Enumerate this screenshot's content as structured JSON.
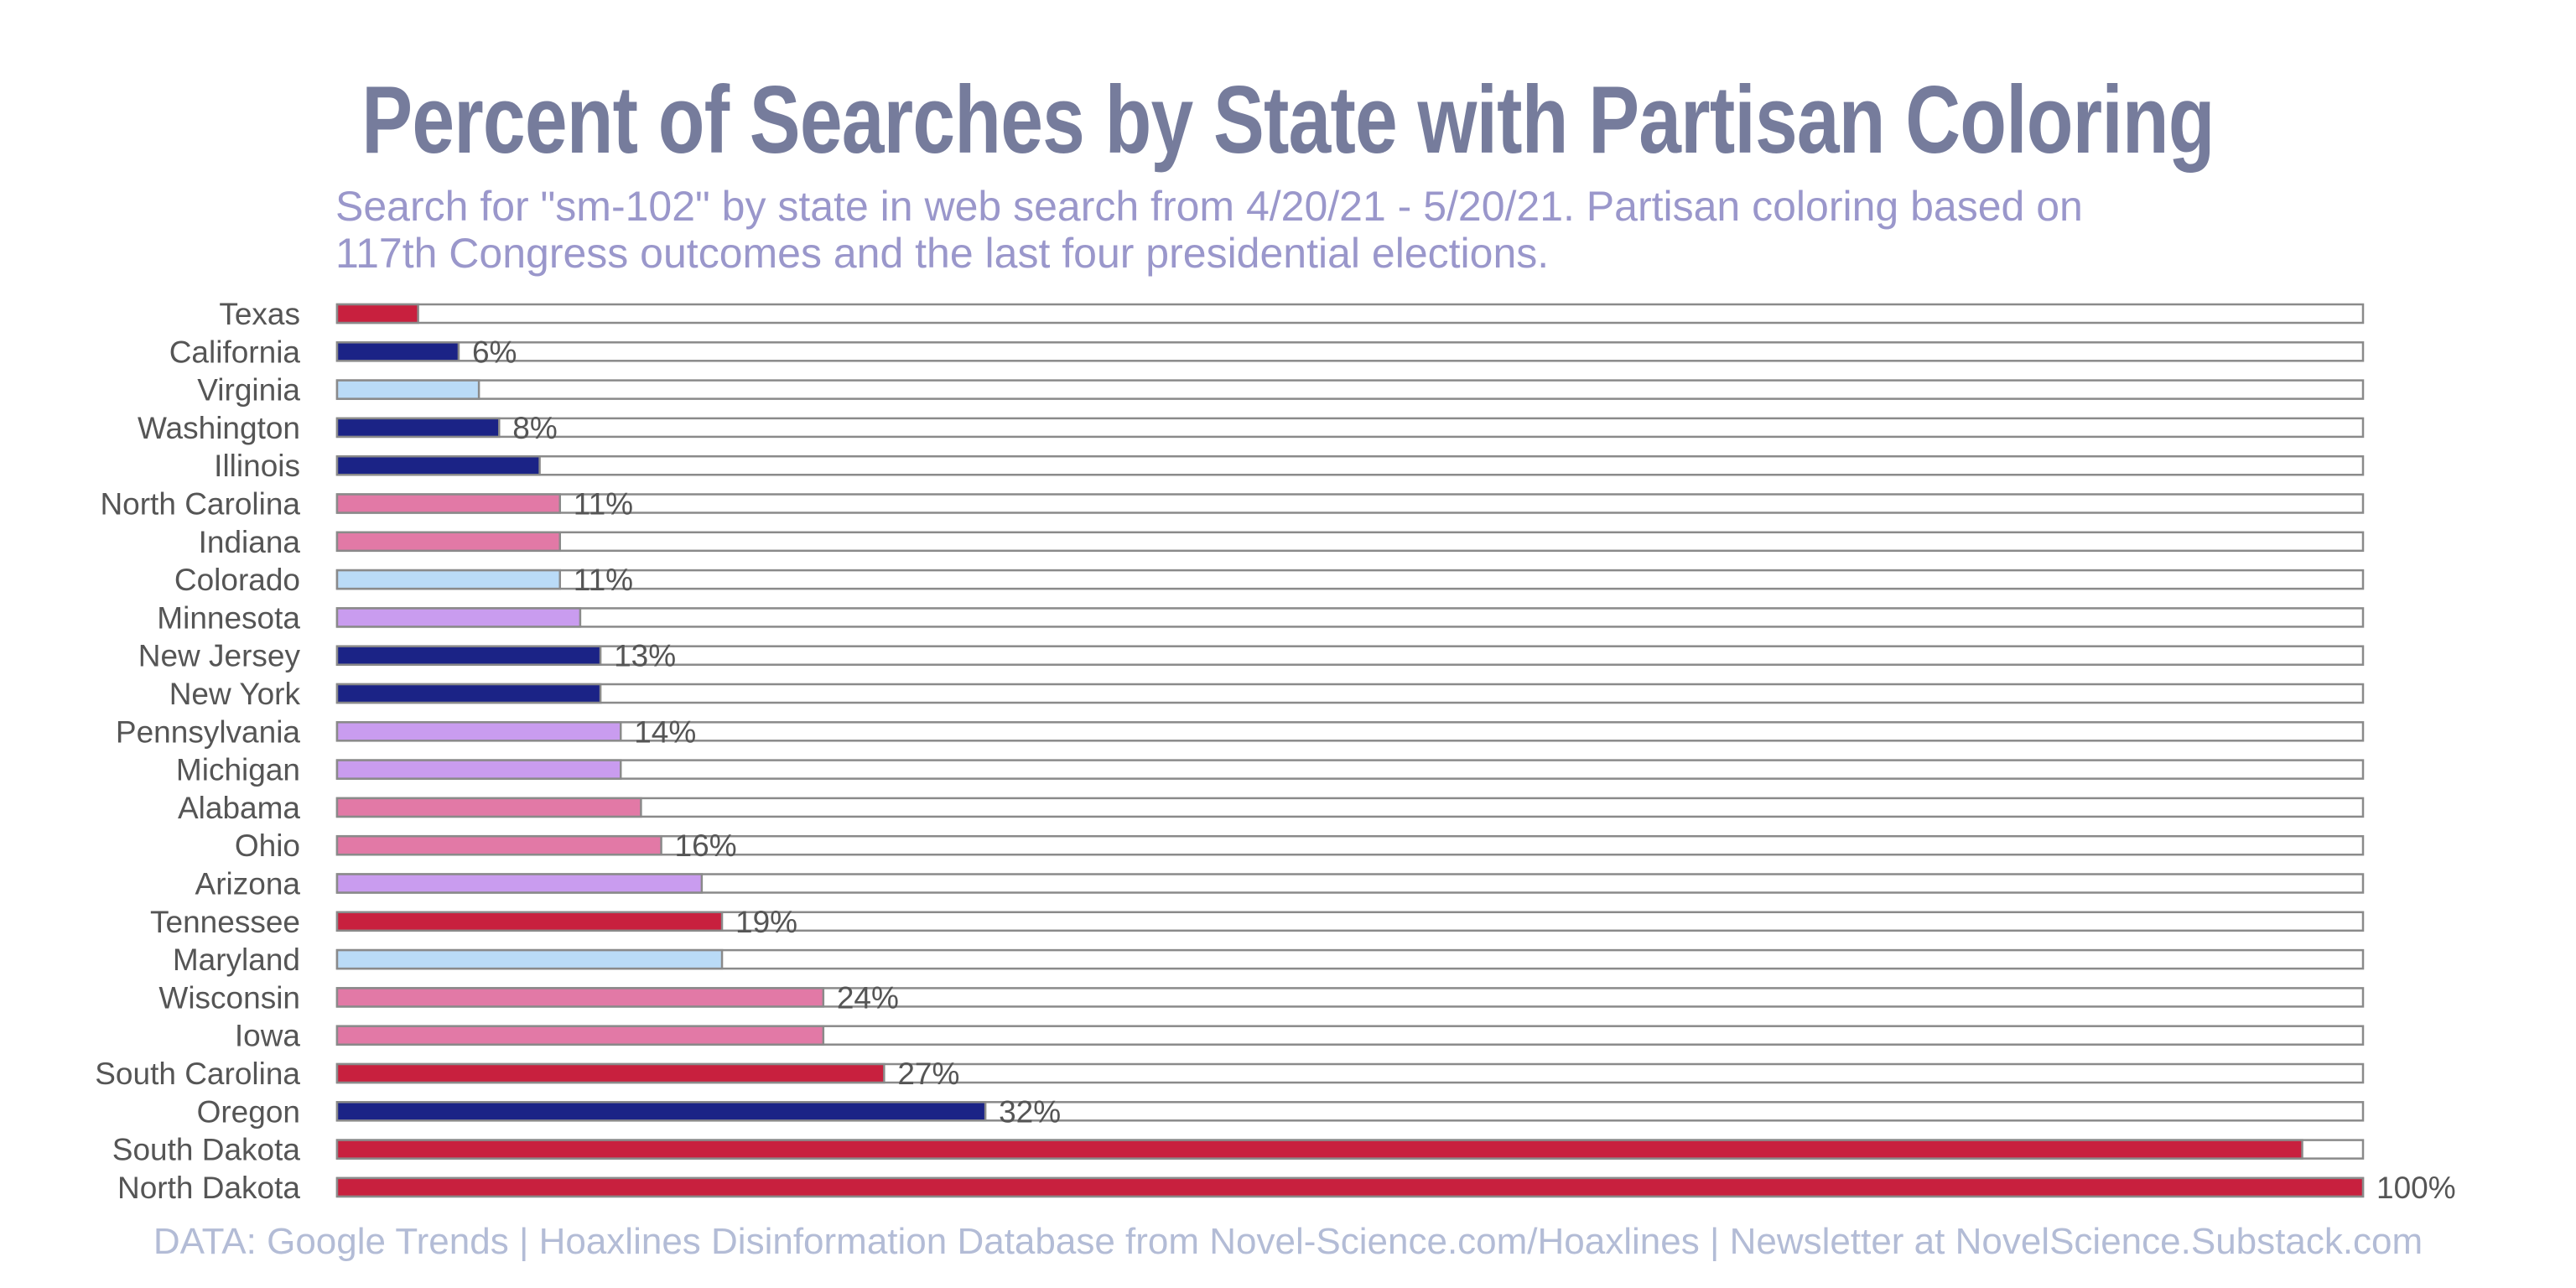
{
  "title": "Percent of Searches by State with Partisan Coloring",
  "subtitle_lines": [
    "Search for \"sm-102\" by state in web search from 4/20/21 - 5/20/21. Partisan coloring based on",
    "117th Congress outcomes and the last four presidential elections."
  ],
  "source": "DATA: Google Trends | Hoaxlines Disinformation Database from Novel-Science.com/Hoaxlines | Newsletter at NovelScience.Substack.com",
  "colors": {
    "solid_red": "#c8203e",
    "lean_red": "#e279a6",
    "swing": "#c99cef",
    "lean_blue": "#badbf7",
    "solid_blue": "#1b2386",
    "track_border": "#8a8a8a",
    "label": "#555555"
  },
  "chart_data": {
    "type": "bar",
    "orientation": "horizontal",
    "xlim": [
      0,
      100
    ],
    "categories": [
      "Texas",
      "California",
      "Virginia",
      "Washington",
      "Illinois",
      "North Carolina",
      "Indiana",
      "Colorado",
      "Minnesota",
      "New Jersey",
      "New York",
      "Pennsylvania",
      "Michigan",
      "Alabama",
      "Ohio",
      "Arizona",
      "Tennessee",
      "Maryland",
      "Wisconsin",
      "Iowa",
      "South Carolina",
      "Oregon",
      "South Dakota",
      "North Dakota"
    ],
    "values": [
      4,
      6,
      7,
      8,
      10,
      11,
      11,
      11,
      12,
      13,
      13,
      14,
      14,
      15,
      16,
      18,
      19,
      19,
      24,
      24,
      27,
      32,
      97,
      100
    ],
    "partisan": [
      "solid_red",
      "solid_blue",
      "lean_blue",
      "solid_blue",
      "solid_blue",
      "lean_red",
      "lean_red",
      "lean_blue",
      "swing",
      "solid_blue",
      "solid_blue",
      "swing",
      "swing",
      "lean_red",
      "lean_red",
      "swing",
      "solid_red",
      "lean_blue",
      "lean_red",
      "lean_red",
      "solid_red",
      "solid_blue",
      "solid_red",
      "solid_red"
    ],
    "data_labels": [
      "",
      "6%",
      "",
      "8%",
      "",
      "11%",
      "",
      "11%",
      "",
      "13%",
      "",
      "14%",
      "",
      "",
      "16%",
      "",
      "19%",
      "",
      "24%",
      "",
      "27%",
      "32%",
      "",
      "100%"
    ]
  }
}
